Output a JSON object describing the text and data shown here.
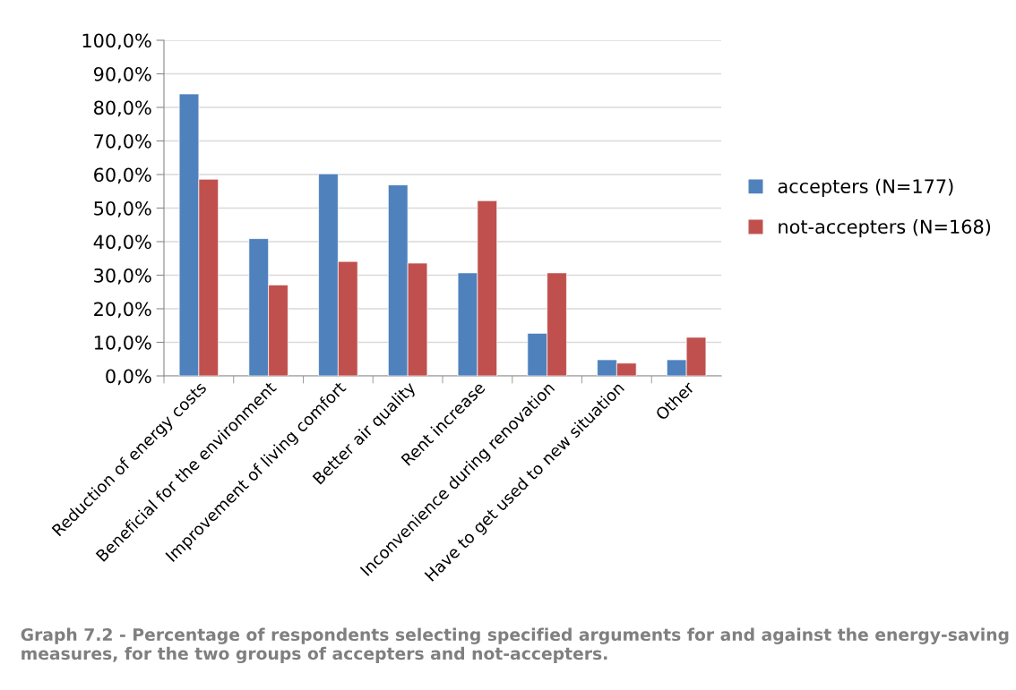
{
  "chart_data": {
    "type": "bar",
    "categories": [
      "Reduction of energy costs",
      "Beneficial for the environment",
      "Improvement of living comfort",
      "Better air quality",
      "Rent increase",
      "Inconvenience during renovation",
      "Have to get used to new situation",
      "Other"
    ],
    "series": [
      {
        "name": "accepters (N=177)",
        "color": "#4f81bd",
        "values": [
          84.0,
          40.9,
          60.2,
          56.9,
          30.7,
          12.7,
          4.8,
          4.8
        ]
      },
      {
        "name": "not-accepters (N=168)",
        "color": "#c0504d",
        "values": [
          58.6,
          27.1,
          34.1,
          33.6,
          52.2,
          30.7,
          3.8,
          11.5
        ]
      }
    ],
    "ylim": [
      0,
      100
    ],
    "yticks": [
      {
        "value": 0,
        "label": "0,0%"
      },
      {
        "value": 10,
        "label": "10,0%"
      },
      {
        "value": 20,
        "label": "20,0%"
      },
      {
        "value": 30,
        "label": "30,0%"
      },
      {
        "value": 40,
        "label": "40,0%"
      },
      {
        "value": 50,
        "label": "50,0%"
      },
      {
        "value": 60,
        "label": "60,0%"
      },
      {
        "value": 70,
        "label": "70,0%"
      },
      {
        "value": 80,
        "label": "80,0%"
      },
      {
        "value": 90,
        "label": "90,0%"
      },
      {
        "value": 100,
        "label": "100,0%"
      }
    ],
    "grid": "y",
    "legend": "right",
    "annotations": [
      "Graph 7.2 - Percentage of respondents selecting specified arguments for and against the energy-saving measures, for the two groups of accepters and not-accepters."
    ]
  }
}
